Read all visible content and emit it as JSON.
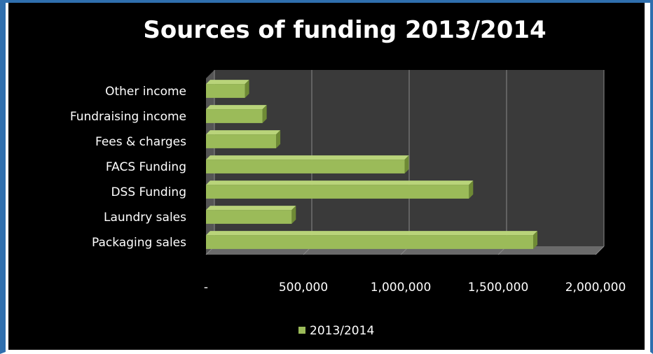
{
  "chart_data": {
    "type": "bar",
    "orientation": "horizontal",
    "title": "Sources of funding 2013/2014",
    "categories": [
      "Other income",
      "Fundraising income",
      "Fees & charges",
      "FACS Funding",
      "DSS Funding",
      "Laundry sales",
      "Packaging sales"
    ],
    "series": [
      {
        "name": "2013/2014",
        "values": [
          200000,
          290000,
          360000,
          1020000,
          1350000,
          440000,
          1680000
        ]
      }
    ],
    "xlim": [
      0,
      2000000
    ],
    "xticks": [
      "-",
      "500,000",
      "1,000,000",
      "1,500,000",
      "2,000,000"
    ],
    "grid": true,
    "legend": "bottom",
    "colors": {
      "bar": "#9bbb59",
      "bar_light": "#b9d47a",
      "bar_dark": "#6e8a35",
      "background": "#000000",
      "plot_wall": "#3a3a3a",
      "frame": "#2f6fae"
    }
  }
}
